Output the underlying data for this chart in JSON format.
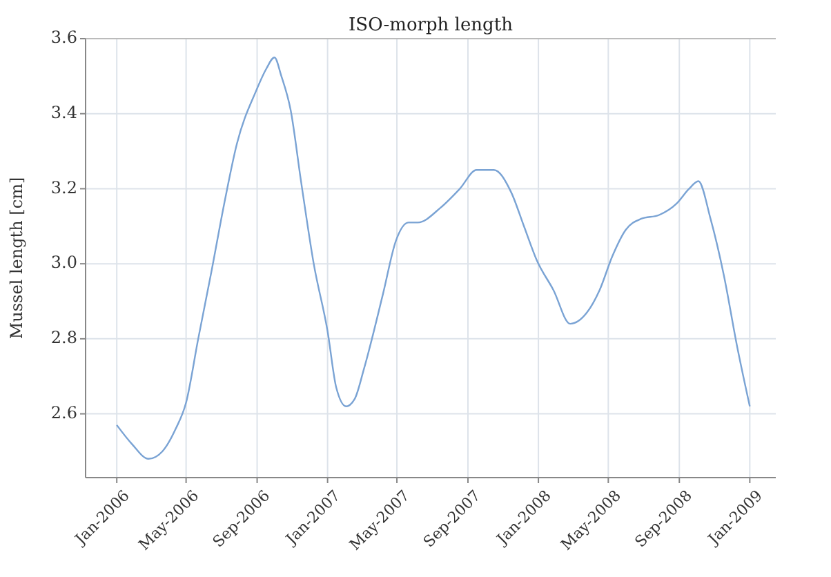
{
  "chart_data": {
    "type": "line",
    "title": "ISO-morph length",
    "ylabel": "Mussel length [cm]",
    "x": [
      "2006-01-01",
      "2006-01-27",
      "2006-02-25",
      "2006-03-21",
      "2006-04-13",
      "2006-05-01",
      "2006-05-22",
      "2006-06-14",
      "2006-07-06",
      "2006-07-28",
      "2006-08-30",
      "2006-09-17",
      "2006-10-01",
      "2006-10-13",
      "2006-10-29",
      "2006-11-16",
      "2006-12-08",
      "2007-01-01",
      "2007-01-16",
      "2007-02-02",
      "2007-02-17",
      "2007-03-05",
      "2007-04-07",
      "2007-04-29",
      "2007-05-21",
      "2007-06-06",
      "2007-07-16",
      "2007-08-18",
      "2007-09-16",
      "2007-10-16",
      "2007-11-15",
      "2007-12-07",
      "2007-12-29",
      "2008-01-27",
      "2008-02-25",
      "2008-03-25",
      "2008-04-16",
      "2008-05-08",
      "2008-05-31",
      "2008-06-27",
      "2008-07-28",
      "2008-08-27",
      "2008-09-18",
      "2008-10-04",
      "2008-10-25",
      "2008-11-17",
      "2008-12-10",
      "2009-01-01"
    ],
    "series": [
      {
        "color": "#7aa3d4",
        "values": [
          2.57,
          2.52,
          2.48,
          2.5,
          2.56,
          2.63,
          2.8,
          2.98,
          3.16,
          3.32,
          3.46,
          3.52,
          3.55,
          3.5,
          3.41,
          3.22,
          3.0,
          2.82,
          2.67,
          2.62,
          2.64,
          2.72,
          2.92,
          3.06,
          3.11,
          3.11,
          3.15,
          3.2,
          3.25,
          3.25,
          3.19,
          3.1,
          3.01,
          2.93,
          2.84,
          2.87,
          2.93,
          3.02,
          3.09,
          3.12,
          3.13,
          3.16,
          3.2,
          3.22,
          3.12,
          2.97,
          2.78,
          2.62
        ]
      }
    ],
    "xlim": [
      "2005-11-08",
      "2009-02-15"
    ],
    "xticks": [
      {
        "value": "2006-01",
        "label": "Jan-2006"
      },
      {
        "value": "2006-05",
        "label": "May-2006"
      },
      {
        "value": "2006-09",
        "label": "Sep-2006"
      },
      {
        "value": "2007-01",
        "label": "Jan-2007"
      },
      {
        "value": "2007-05",
        "label": "May-2007"
      },
      {
        "value": "2007-09",
        "label": "Sep-2007"
      },
      {
        "value": "2008-01",
        "label": "Jan-2008"
      },
      {
        "value": "2008-05",
        "label": "May-2008"
      },
      {
        "value": "2008-09",
        "label": "Sep-2008"
      },
      {
        "value": "2009-01",
        "label": "Jan-2009"
      }
    ],
    "ylim": [
      2.43,
      3.6
    ],
    "yticks": [
      2.6,
      2.8,
      {
        "value": 3,
        "label": "3.0"
      },
      3.2,
      3.4,
      3.6
    ],
    "grid": true
  }
}
